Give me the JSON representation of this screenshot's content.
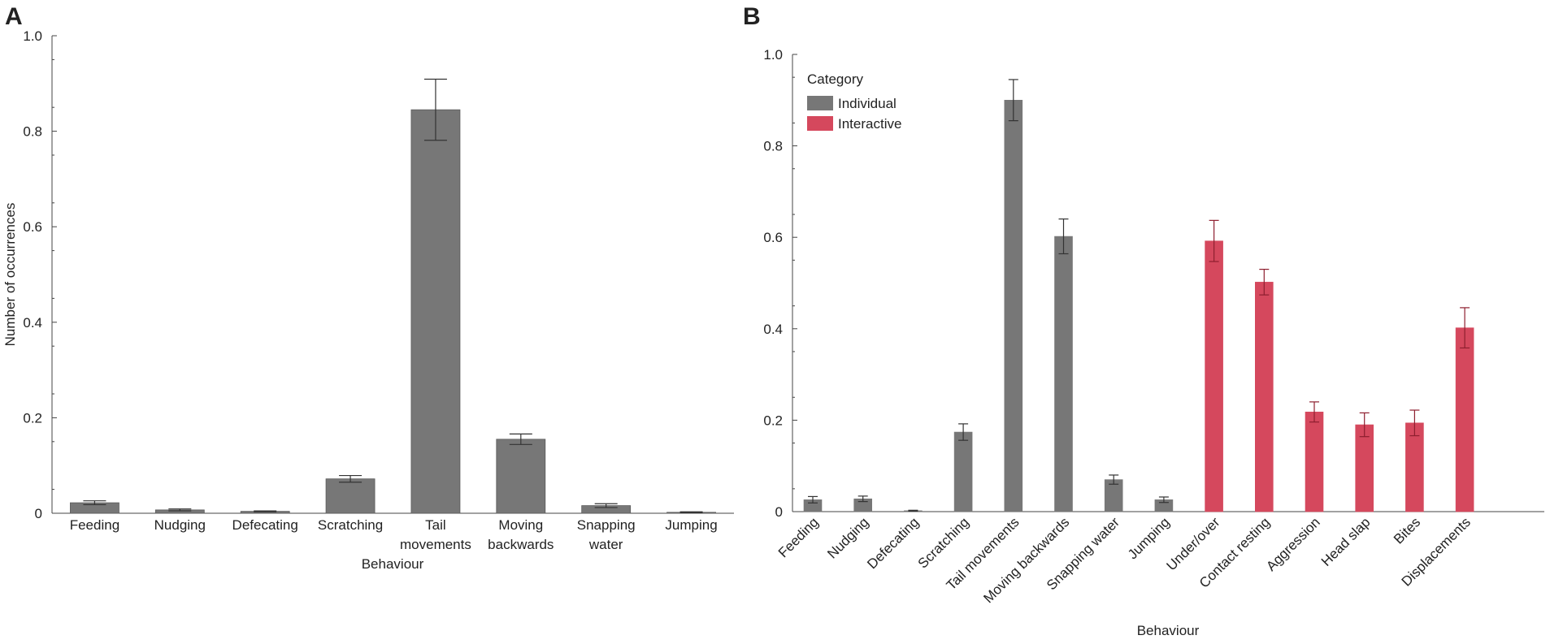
{
  "chart_data": [
    {
      "panel_label": "A",
      "type": "bar",
      "title": "",
      "xlabel": "Behaviour",
      "ylabel": "Number of occurrences",
      "ylim": [
        0,
        1.0
      ],
      "yticks": [
        "0",
        "0.2",
        "0.4",
        "0.6",
        "0.8",
        "1.0"
      ],
      "ytick_values": [
        0,
        0.2,
        0.4,
        0.6,
        0.8,
        1.0
      ],
      "categories": [
        [
          "Feeding"
        ],
        [
          "Nudging"
        ],
        [
          "Defecating"
        ],
        [
          "Scratching"
        ],
        [
          "Tail",
          "movements"
        ],
        [
          "Moving",
          "backwards"
        ],
        [
          "Snapping",
          "water"
        ],
        [
          "Jumping"
        ]
      ],
      "values": [
        0.022,
        0.007,
        0.004,
        0.072,
        0.845,
        0.155,
        0.016,
        0.002
      ],
      "errors": [
        0.004,
        0.002,
        0.001,
        0.007,
        0.064,
        0.011,
        0.004,
        0.001
      ],
      "color": "#777777",
      "legend": null
    },
    {
      "panel_label": "B",
      "type": "bar",
      "title": "",
      "xlabel": "Behaviour",
      "ylabel": "",
      "ylim": [
        0,
        1.0
      ],
      "yticks": [
        "0",
        "0.2",
        "0.4",
        "0.6",
        "0.8",
        "1.0"
      ],
      "ytick_values": [
        0,
        0.2,
        0.4,
        0.6,
        0.8,
        1.0
      ],
      "categories": [
        "Feeding",
        "Nudging",
        "Defecating",
        "Scratching",
        "Tail movements",
        "Moving backwards",
        "Snapping water",
        "Jumping",
        "Under/over",
        "Contact resting",
        "Aggression",
        "Head slap",
        "Bites",
        "Displacements"
      ],
      "values": [
        0.026,
        0.028,
        0.002,
        0.174,
        0.9,
        0.602,
        0.07,
        0.026,
        0.592,
        0.502,
        0.218,
        0.19,
        0.194,
        0.402
      ],
      "errors": [
        0.007,
        0.006,
        0.001,
        0.018,
        0.045,
        0.038,
        0.01,
        0.006,
        0.045,
        0.028,
        0.022,
        0.026,
        0.028,
        0.044
      ],
      "category_group": [
        0,
        0,
        0,
        0,
        0,
        0,
        0,
        0,
        1,
        1,
        1,
        1,
        1,
        1
      ],
      "legend": {
        "title": "Category",
        "placement": "top-left",
        "entries": [
          {
            "name": "Individual",
            "color": "#777777",
            "error_color": "#333333"
          },
          {
            "name": "Interactive",
            "color": "#d5485d",
            "error_color": "#8e1f2f"
          }
        ]
      }
    }
  ]
}
